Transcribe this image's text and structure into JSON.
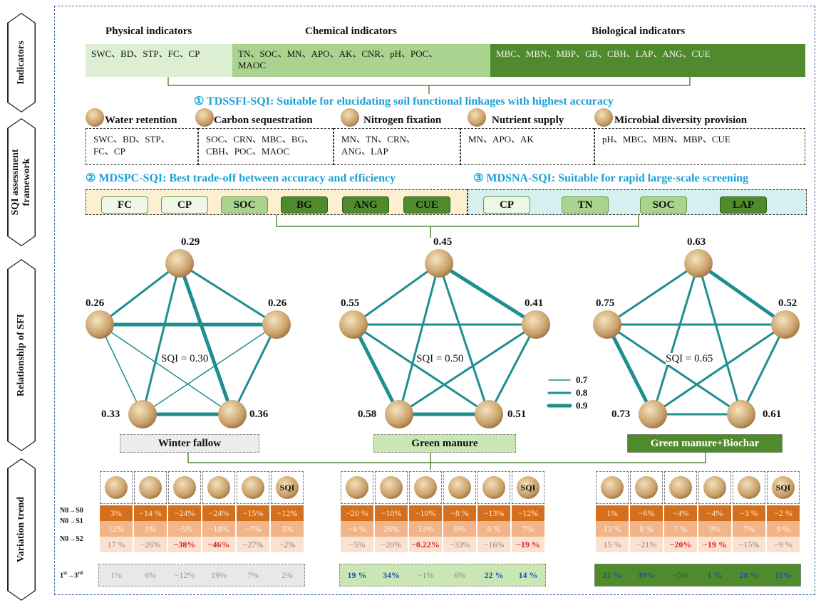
{
  "side_labels": {
    "indicators": "Indicators",
    "sqi_framework_line1": "SQI assessment",
    "sqi_framework_line2": "framework",
    "relationship": "Relationship of SFI",
    "variation": "Variation trend"
  },
  "indicators": {
    "physical": {
      "title": "Physical indicators",
      "items": "SWC、BD、STP、FC、CP",
      "color": "#dcefd2"
    },
    "chemical": {
      "title": "Chemical indicators",
      "items_line1": "TN、SOC、MN、APO、AK、CNR、pH、POC、",
      "items_line2": "MAOC",
      "color": "#a9d38e"
    },
    "biological": {
      "title": "Biological indicators",
      "items": "MBC、MBN、MBP、GB、CBH、LAP、ANG、CUE",
      "color": "#4f8a2c"
    }
  },
  "tdssfi": {
    "label": "① TDSSFI-SQI: Suitable for elucidating soil functional linkages with highest accuracy"
  },
  "functions": [
    {
      "name": "Water retention",
      "icon": "water-drop-icon"
    },
    {
      "name": "Carbon sequestration",
      "icon": "carbon-particles-icon"
    },
    {
      "name": "Nitrogen fixation",
      "icon": "nitrogen-granules-icon"
    },
    {
      "name": "Nutrient supply",
      "icon": "npk-nutrient-icon"
    },
    {
      "name": "Microbial diversity  provision",
      "icon": "microbe-icon"
    }
  ],
  "function_indicators": [
    {
      "line1": "SWC、BD、STP、",
      "line2": "FC、CP"
    },
    {
      "line1": "SOC、CRN、MBC、BG、",
      "line2": "CBH、POC、MAOC"
    },
    {
      "line1": "MN、TN、CRN、",
      "line2": "ANG、LAP"
    },
    {
      "line1": "MN、APO、AK",
      "line2": ""
    },
    {
      "line1": "pH、MBC、MBN、MBP、CUE",
      "line2": ""
    }
  ],
  "mdspc": {
    "label": "② MDSPC-SQI: Best trade-off between accuracy and efficiency",
    "pills": [
      "FC",
      "CP",
      "SOC",
      "BG",
      "ANG",
      "CUE"
    ]
  },
  "mdsna": {
    "label": "③ MDSNA-SQI:  Suitable for rapid large-scale screening",
    "pills": [
      "CP",
      "TN",
      "SOC",
      "LAP"
    ]
  },
  "colors": {
    "teal": "#1f8e8e",
    "orange1": "#d46f1e",
    "orange2": "#f2b58a",
    "orange3": "#fbe1cf",
    "mdspc_bg": "#fdf0d0",
    "mdsna_bg": "#d6f0ef",
    "light_green": "#c9e6b4",
    "dark_green": "#4f8a2c",
    "grey": "#e8e8e8",
    "red": "#e02020",
    "blue": "#1a50b0"
  },
  "networks": [
    {
      "title": "Winter fallow",
      "sqi": "SQI = 0.30",
      "top": "0.29",
      "left": "0.26",
      "right": "0.26",
      "bl": "0.33",
      "br": "0.36"
    },
    {
      "title": "Green manure",
      "sqi": "SQI = 0.50",
      "top": "0.45",
      "left": "0.55",
      "right": "0.41",
      "bl": "0.58",
      "br": "0.51"
    },
    {
      "title": "Green manure+Biochar",
      "sqi": "SQI = 0.65",
      "top": "0.63",
      "left": "0.75",
      "right": "0.52",
      "bl": "0.73",
      "br": "0.61"
    }
  ],
  "legend": [
    "0.7",
    "0.8",
    "0.9"
  ],
  "row_labels": [
    "N0→S0",
    "N0→S1",
    "N0→S2"
  ],
  "row4_label": {
    "main": "1",
    "sup1": "st",
    "arrow": "→3",
    "sup2": "rd"
  },
  "sqi_icon_label": "SQI",
  "trend": [
    {
      "r1": [
        "3%",
        "−14 %",
        "−24%",
        "−24%",
        "−15%",
        "−12%"
      ],
      "r2": [
        "12%",
        "1%",
        "−5%",
        "−18%",
        "−7%",
        "3%"
      ],
      "r3": [
        "17 %",
        "−26%",
        "−38%",
        "−46%",
        "−27%",
        "−2%"
      ],
      "r3_red": [
        false,
        false,
        true,
        true,
        false,
        false
      ],
      "r4": [
        "1%",
        "6%",
        "−12%",
        "19%",
        "7%",
        "2%"
      ],
      "r4_blue": [
        false,
        false,
        false,
        false,
        false,
        false
      ]
    },
    {
      "r1": [
        "−20 %",
        "−10%",
        "−10%",
        "−8 %",
        "−13%",
        "−12%"
      ],
      "r2": [
        "−4 %",
        "26%",
        "13%",
        "6%",
        "9 %",
        "7%"
      ],
      "r3": [
        "−5%",
        "−20%",
        "−0.22%",
        "−33%",
        "−16%",
        "−19 %"
      ],
      "r3_red": [
        false,
        false,
        true,
        false,
        false,
        true
      ],
      "r4": [
        "19 %",
        "34%",
        "−1%",
        "6%",
        "22 %",
        "14 %"
      ],
      "r4_blue": [
        true,
        true,
        false,
        false,
        true,
        true
      ]
    },
    {
      "r1": [
        "1%",
        "−6%",
        "−4%",
        "−4%",
        "−3 %",
        "−2 %"
      ],
      "r2": [
        "13 %",
        "8 %",
        "7 %",
        "9%",
        "7%",
        "9 %"
      ],
      "r3": [
        "15 %",
        "−21%",
        "−20%",
        "−19 %",
        "−15%",
        "−9 %"
      ],
      "r3_red": [
        false,
        false,
        true,
        true,
        false,
        false
      ],
      "r4": [
        "21 %",
        "39%",
        "−5%",
        "1 %",
        "20 %",
        "15%"
      ],
      "r4_blue": [
        true,
        true,
        false,
        true,
        true,
        true
      ]
    }
  ]
}
